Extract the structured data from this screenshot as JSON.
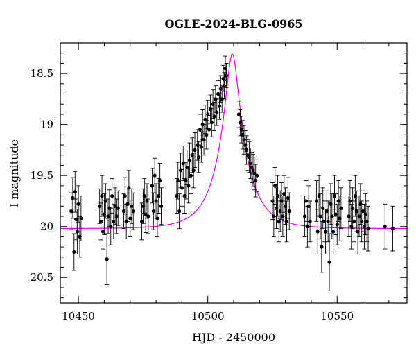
{
  "chart_data": {
    "type": "scatter",
    "title": "OGLE-2024-BLG-0965",
    "xlabel": "HJD - 2450000",
    "ylabel": "I magnitude",
    "xlim": [
      10443,
      10577
    ],
    "ylim": [
      20.75,
      18.2
    ],
    "y_inverted": true,
    "x_ticks": [
      10450,
      10500,
      10550
    ],
    "y_ticks": [
      18.5,
      19,
      19.5,
      20,
      20.5
    ],
    "grid": false,
    "series": [
      {
        "kind": "points_with_errorbars",
        "color": "#000000",
        "points": [
          [
            10447.2,
            19.85,
            0.18
          ],
          [
            10447.8,
            19.72,
            0.2
          ],
          [
            10448.3,
            20.25,
            0.18
          ],
          [
            10448.7,
            19.66,
            0.2
          ],
          [
            10449.1,
            19.93,
            0.2
          ],
          [
            10449.6,
            20.05,
            0.22
          ],
          [
            10450.0,
            19.78,
            0.18
          ],
          [
            10450.5,
            20.1,
            0.2
          ],
          [
            10451.0,
            19.92,
            0.22
          ],
          [
            10458.2,
            19.8,
            0.17
          ],
          [
            10458.7,
            19.95,
            0.18
          ],
          [
            10459.1,
            19.7,
            0.2
          ],
          [
            10459.5,
            20.05,
            0.17
          ],
          [
            10460.0,
            19.88,
            0.2
          ],
          [
            10460.5,
            19.75,
            0.17
          ],
          [
            10461.0,
            20.32,
            0.25
          ],
          [
            10461.5,
            19.9,
            0.17
          ],
          [
            10462.0,
            19.82,
            0.18
          ],
          [
            10462.5,
            20.0,
            0.18
          ],
          [
            10463.0,
            19.7,
            0.17
          ],
          [
            10463.6,
            19.95,
            0.17
          ],
          [
            10464.2,
            19.8,
            0.18
          ],
          [
            10464.8,
            19.9,
            0.17
          ],
          [
            10465.3,
            19.82,
            0.17
          ],
          [
            10467.5,
            19.85,
            0.17
          ],
          [
            10468.0,
            19.7,
            0.18
          ],
          [
            10468.5,
            19.95,
            0.17
          ],
          [
            10469.0,
            19.78,
            0.17
          ],
          [
            10469.5,
            19.62,
            0.17
          ],
          [
            10470.0,
            19.92,
            0.18
          ],
          [
            10470.6,
            19.8,
            0.17
          ],
          [
            10471.2,
            19.85,
            0.18
          ],
          [
            10474.5,
            19.95,
            0.18
          ],
          [
            10475.0,
            19.8,
            0.17
          ],
          [
            10475.5,
            19.7,
            0.17
          ],
          [
            10476.0,
            19.88,
            0.18
          ],
          [
            10476.5,
            19.75,
            0.17
          ],
          [
            10477.0,
            19.9,
            0.17
          ],
          [
            10478.5,
            19.6,
            0.17
          ],
          [
            10479.0,
            19.85,
            0.18
          ],
          [
            10479.5,
            19.5,
            0.17
          ],
          [
            10480.0,
            19.75,
            0.17
          ],
          [
            10480.5,
            19.92,
            0.18
          ],
          [
            10481.0,
            19.7,
            0.17
          ],
          [
            10481.5,
            19.55,
            0.17
          ],
          [
            10482.0,
            19.8,
            0.18
          ],
          [
            10488.0,
            19.7,
            0.17
          ],
          [
            10488.5,
            19.55,
            0.18
          ],
          [
            10489.0,
            19.85,
            0.17
          ],
          [
            10489.5,
            19.45,
            0.17
          ],
          [
            10490.0,
            19.62,
            0.18
          ],
          [
            10490.5,
            19.38,
            0.17
          ],
          [
            10491.0,
            19.7,
            0.17
          ],
          [
            10491.5,
            19.55,
            0.18
          ],
          [
            10492.0,
            19.42,
            0.17
          ],
          [
            10492.5,
            19.6,
            0.17
          ],
          [
            10493.0,
            19.35,
            0.17
          ],
          [
            10493.5,
            19.5,
            0.18
          ],
          [
            10494.0,
            19.3,
            0.17
          ],
          [
            10494.5,
            19.45,
            0.17
          ],
          [
            10495.0,
            19.25,
            0.17
          ],
          [
            10496.0,
            19.2,
            0.15
          ],
          [
            10496.5,
            19.32,
            0.15
          ],
          [
            10497.0,
            19.05,
            0.15
          ],
          [
            10497.5,
            19.22,
            0.15
          ],
          [
            10498.0,
            19.0,
            0.15
          ],
          [
            10498.5,
            19.15,
            0.15
          ],
          [
            10499.0,
            18.95,
            0.14
          ],
          [
            10499.5,
            19.1,
            0.14
          ],
          [
            10500.0,
            18.9,
            0.14
          ],
          [
            10500.5,
            19.05,
            0.14
          ],
          [
            10501.0,
            18.85,
            0.14
          ],
          [
            10501.5,
            18.98,
            0.14
          ],
          [
            10502.0,
            18.8,
            0.14
          ],
          [
            10502.5,
            18.92,
            0.14
          ],
          [
            10503.0,
            18.75,
            0.13
          ],
          [
            10503.5,
            18.88,
            0.13
          ],
          [
            10504.0,
            18.7,
            0.13
          ],
          [
            10504.5,
            18.82,
            0.13
          ],
          [
            10505.0,
            18.65,
            0.13
          ],
          [
            10505.5,
            18.75,
            0.13
          ],
          [
            10506.0,
            18.55,
            0.13
          ],
          [
            10506.4,
            18.62,
            0.13
          ],
          [
            10506.8,
            18.45,
            0.12
          ],
          [
            10507.2,
            18.52,
            0.12
          ],
          [
            10512.0,
            18.9,
            0.13
          ],
          [
            10512.5,
            18.98,
            0.13
          ],
          [
            10513.0,
            19.05,
            0.13
          ],
          [
            10513.5,
            19.1,
            0.14
          ],
          [
            10514.0,
            19.15,
            0.14
          ],
          [
            10514.5,
            19.2,
            0.14
          ],
          [
            10515.0,
            19.25,
            0.14
          ],
          [
            10515.5,
            19.3,
            0.15
          ],
          [
            10516.0,
            19.32,
            0.15
          ],
          [
            10516.5,
            19.38,
            0.15
          ],
          [
            10517.0,
            19.42,
            0.15
          ],
          [
            10517.5,
            19.45,
            0.16
          ],
          [
            10518.0,
            19.48,
            0.16
          ],
          [
            10518.5,
            19.55,
            0.16
          ],
          [
            10519.0,
            19.5,
            0.16
          ],
          [
            10525.0,
            19.75,
            0.18
          ],
          [
            10525.5,
            19.9,
            0.2
          ],
          [
            10526.0,
            19.6,
            0.18
          ],
          [
            10526.5,
            19.82,
            0.2
          ],
          [
            10527.0,
            19.7,
            0.2
          ],
          [
            10527.5,
            19.95,
            0.2
          ],
          [
            10528.0,
            19.85,
            0.2
          ],
          [
            10528.5,
            19.75,
            0.18
          ],
          [
            10529.0,
            19.9,
            0.2
          ],
          [
            10529.5,
            19.68,
            0.18
          ],
          [
            10530.0,
            19.8,
            0.18
          ],
          [
            10530.5,
            19.95,
            0.2
          ],
          [
            10531.0,
            19.72,
            0.2
          ],
          [
            10531.5,
            19.85,
            0.18
          ],
          [
            10537.5,
            19.9,
            0.2
          ],
          [
            10538.0,
            19.75,
            0.2
          ],
          [
            10538.5,
            20.0,
            0.2
          ],
          [
            10539.0,
            19.8,
            0.2
          ],
          [
            10539.5,
            19.95,
            0.2
          ],
          [
            10542.0,
            19.75,
            0.2
          ],
          [
            10542.5,
            20.05,
            0.22
          ],
          [
            10543.0,
            19.7,
            0.2
          ],
          [
            10543.5,
            19.9,
            0.22
          ],
          [
            10544.0,
            20.2,
            0.25
          ],
          [
            10544.5,
            19.82,
            0.2
          ],
          [
            10545.0,
            19.95,
            0.2
          ],
          [
            10545.5,
            20.05,
            0.22
          ],
          [
            10546.0,
            19.85,
            0.2
          ],
          [
            10546.5,
            19.95,
            0.2
          ],
          [
            10547.0,
            20.35,
            0.28
          ],
          [
            10547.5,
            19.78,
            0.2
          ],
          [
            10548.0,
            19.9,
            0.22
          ],
          [
            10548.5,
            20.05,
            0.22
          ],
          [
            10549.0,
            19.7,
            0.2
          ],
          [
            10549.5,
            19.88,
            0.2
          ],
          [
            10550.0,
            19.98,
            0.2
          ],
          [
            10550.5,
            19.75,
            0.2
          ],
          [
            10551.0,
            19.92,
            0.22
          ],
          [
            10551.5,
            19.82,
            0.2
          ],
          [
            10554.5,
            19.9,
            0.2
          ],
          [
            10555.0,
            19.75,
            0.2
          ],
          [
            10555.5,
            20.0,
            0.22
          ],
          [
            10556.0,
            19.82,
            0.2
          ],
          [
            10556.5,
            19.95,
            0.2
          ],
          [
            10557.0,
            19.7,
            0.2
          ],
          [
            10557.5,
            19.85,
            0.2
          ],
          [
            10558.0,
            20.05,
            0.22
          ],
          [
            10558.5,
            19.9,
            0.2
          ],
          [
            10559.0,
            19.78,
            0.2
          ],
          [
            10559.5,
            19.95,
            0.2
          ],
          [
            10560.0,
            19.85,
            0.2
          ],
          [
            10560.5,
            20.0,
            0.22
          ],
          [
            10561.0,
            19.88,
            0.2
          ],
          [
            10561.5,
            19.95,
            0.2
          ],
          [
            10562.0,
            20.02,
            0.22
          ],
          [
            10568.5,
            20.0,
            0.22
          ],
          [
            10571.5,
            20.02,
            0.22
          ]
        ]
      },
      {
        "kind": "model_curve",
        "color": "#e600e6",
        "t0": 10509.5,
        "u0": 0.21,
        "tE": 10.5,
        "baseline": 20.02
      }
    ]
  }
}
